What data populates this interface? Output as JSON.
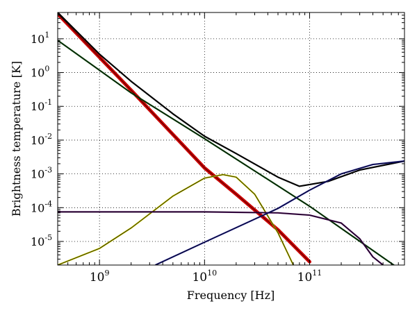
{
  "chart_data": {
    "type": "line",
    "title": "",
    "xlabel": "Frequency [Hz]",
    "ylabel": "Brightness temperature [K]",
    "xscale": "log",
    "yscale": "log",
    "xlim": [
      400000000,
      800000000000
    ],
    "ylim": [
      2e-06,
      60
    ],
    "grid": true,
    "legend": "none",
    "x_ticks": [
      {
        "base": "10",
        "exp": "9",
        "value": 1000000000
      },
      {
        "base": "10",
        "exp": "10",
        "value": 10000000000
      },
      {
        "base": "10",
        "exp": "11",
        "value": 100000000000
      }
    ],
    "y_ticks": [
      {
        "base": "10",
        "exp": "1",
        "value": 10
      },
      {
        "base": "10",
        "exp": "0",
        "value": 1
      },
      {
        "base": "10",
        "exp": "-1",
        "value": 0.1
      },
      {
        "base": "10",
        "exp": "-2",
        "value": 0.01
      },
      {
        "base": "10",
        "exp": "-3",
        "value": 0.001
      },
      {
        "base": "10",
        "exp": "-4",
        "value": 0.0001
      },
      {
        "base": "10",
        "exp": "-5",
        "value": 1e-05
      }
    ],
    "series": [
      {
        "color": "#cc0000",
        "style": "thick",
        "x": [
          400000000,
          2000000000,
          10000000000,
          20000000000,
          50000000000,
          100000000000
        ],
        "y": [
          55,
          0.3,
          0.0015,
          0.00025,
          2.2e-05,
          2.5e-06
        ]
      },
      {
        "color": "#0d4d0d",
        "style": "thin",
        "x": [
          400000000,
          2000000000,
          10000000000,
          100000000000,
          800000000000
        ],
        "y": [
          9,
          0.25,
          0.011,
          0.00011,
          1.2e-06
        ]
      },
      {
        "color": "#000000",
        "style": "thin",
        "x": [
          400000000,
          1000000000,
          2000000000,
          5000000000,
          10000000000,
          20000000000,
          50000000000,
          80000000000,
          150000000000,
          300000000000,
          800000000000
        ],
        "y": [
          60,
          3.5,
          0.55,
          0.06,
          0.013,
          0.004,
          0.0008,
          0.00043,
          0.0006,
          0.0013,
          0.0024
        ]
      },
      {
        "color": "#c8c800",
        "style": "thin",
        "x": [
          400000000,
          1000000000,
          2000000000,
          5000000000,
          10000000000,
          15000000000,
          20000000000,
          30000000000,
          50000000000,
          70000000000
        ],
        "y": [
          2e-06,
          6.2e-06,
          2.5e-05,
          0.00022,
          0.00075,
          0.00095,
          0.0008,
          0.00025,
          1.8e-05,
          2e-06
        ]
      },
      {
        "color": "#4a0a5a",
        "style": "thin",
        "x": [
          400000000,
          10000000000,
          50000000000,
          100000000000,
          200000000000,
          300000000000,
          400000000000,
          500000000000
        ],
        "y": [
          7.5e-05,
          7.5e-05,
          7e-05,
          6e-05,
          3.5e-05,
          1.2e-05,
          3.5e-06,
          2e-06
        ]
      },
      {
        "color": "#1a1a8c",
        "style": "thin",
        "x": [
          3400000000,
          10000000000,
          50000000000,
          100000000000,
          200000000000,
          400000000000,
          800000000000
        ],
        "y": [
          2e-06,
          9.5e-06,
          9.5e-05,
          0.00033,
          0.001,
          0.0019,
          0.0024
        ]
      }
    ]
  }
}
